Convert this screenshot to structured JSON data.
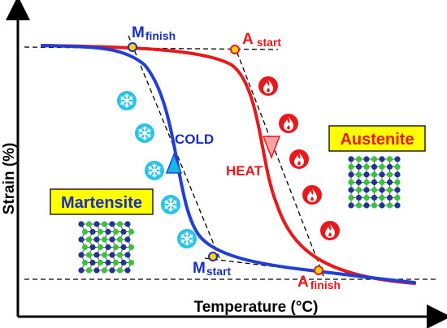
{
  "axes": {
    "x_label": "Temperature (°C)",
    "y_label": "Strain (%)"
  },
  "points": {
    "m_finish": {
      "main": "M",
      "sub": "finish"
    },
    "a_start": {
      "main": "A",
      "sub": "start"
    },
    "m_start": {
      "main": "M",
      "sub": "start"
    },
    "a_finish": {
      "main": "A",
      "sub": "finish"
    }
  },
  "curves": {
    "cooling": {
      "label": "COLD",
      "color": "#1f3fd6",
      "arrow_color": "#13b7ea"
    },
    "heating": {
      "label": "HEAT",
      "color": "#e8181c",
      "arrow_color": "#f7a3a3"
    }
  },
  "phases": {
    "martensite": {
      "label": "Martensite",
      "text_color": "#1a2fc0",
      "box_color": "#ffff00"
    },
    "austenite": {
      "label": "Austenite",
      "text_color": "#e8181c",
      "box_color": "#ffff00"
    }
  },
  "icons": {
    "cold": "snowflake-icon",
    "heat": "flame-icon"
  },
  "colors": {
    "lattice_blue": "#1f3590",
    "lattice_green": "#38c43a",
    "ice_circle": "#27c3ea",
    "fire_circle": "#e8181c"
  }
}
